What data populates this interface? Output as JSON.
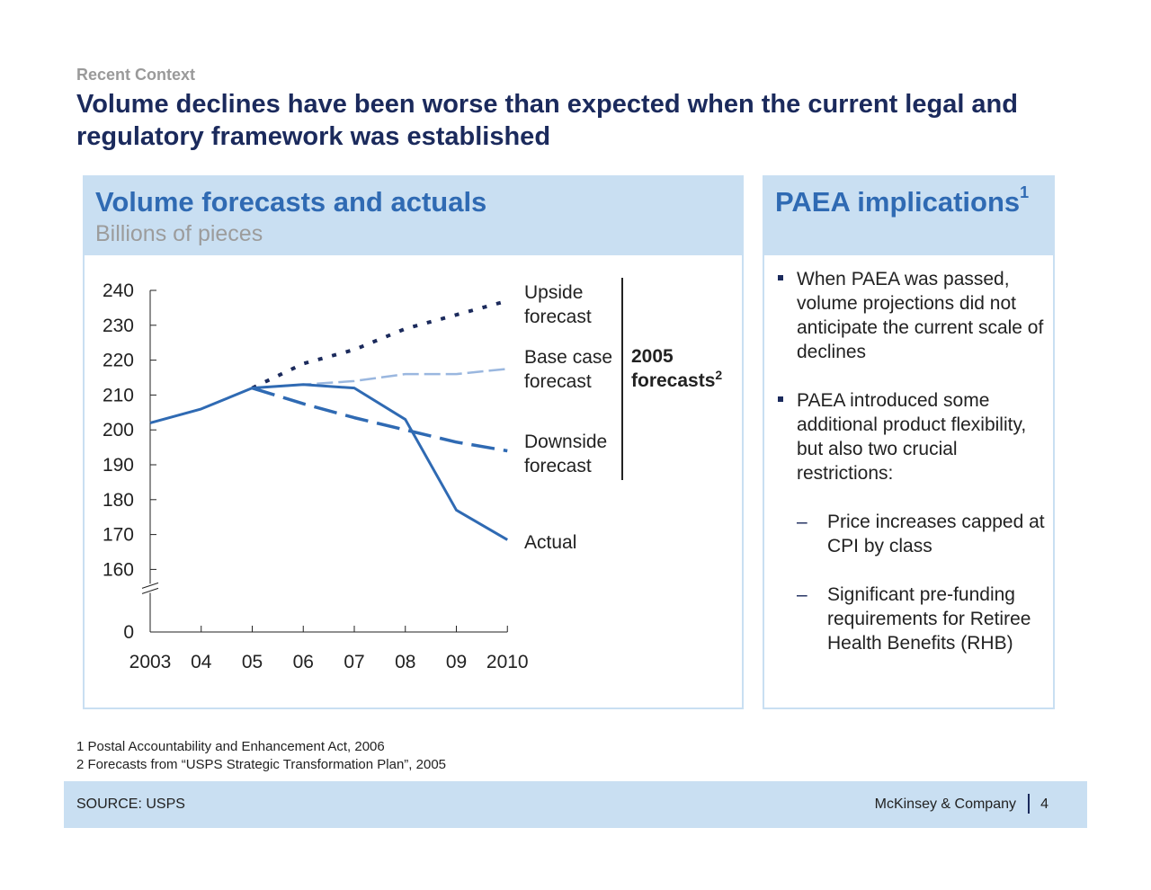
{
  "header": {
    "kicker": "Recent Context",
    "title": "Volume declines have been worse than expected when the current legal and regulatory framework was established"
  },
  "left_panel": {
    "title": "Volume forecasts and actuals",
    "subtitle": "Billions of pieces"
  },
  "right_panel": {
    "title": "PAEA implications",
    "title_sup": "1",
    "bullets": [
      "When PAEA was passed, volume projections did not anticipate the current scale of declines",
      "PAEA introduced some additional product flexibility, but also two crucial restrictions:"
    ],
    "sub_bullets": [
      "Price increases capped at CPI by class",
      "Significant pre-funding requirements for Retiree Health Benefits (RHB)"
    ],
    "dash": "–"
  },
  "chart_data": {
    "type": "line",
    "x": [
      2003,
      2004,
      2005,
      2006,
      2007,
      2008,
      2009,
      2010
    ],
    "x_tick_labels": [
      "2003",
      "04",
      "05",
      "06",
      "07",
      "08",
      "09",
      "2010"
    ],
    "y_tick_labels": [
      "240",
      "230",
      "220",
      "210",
      "200",
      "190",
      "180",
      "170",
      "160",
      "0"
    ],
    "y_ticks": [
      240,
      230,
      220,
      210,
      200,
      190,
      180,
      170,
      160,
      0
    ],
    "ylim_visible": [
      160,
      240
    ],
    "axis_break": true,
    "series": [
      {
        "name": "Upside forecast",
        "style": "dotted",
        "color": "#1b2a5c",
        "x": [
          2005,
          2006,
          2007,
          2008,
          2009,
          2010
        ],
        "values": [
          212,
          219,
          223,
          229,
          233,
          237
        ]
      },
      {
        "name": "Base case forecast",
        "style": "dashed-light",
        "color": "#9ab7df",
        "x": [
          2005,
          2006,
          2007,
          2008,
          2009,
          2010
        ],
        "values": [
          212,
          213,
          214,
          216,
          216,
          217.5
        ]
      },
      {
        "name": "Downside forecast",
        "style": "dashed",
        "color": "#2f6ab3",
        "x": [
          2005,
          2006,
          2007,
          2008,
          2009,
          2010
        ],
        "values": [
          212,
          207.5,
          203.5,
          200,
          196.5,
          194
        ]
      },
      {
        "name": "Actual",
        "style": "solid",
        "color": "#2f6ab3",
        "x": [
          2003,
          2004,
          2005,
          2006,
          2007,
          2008,
          2009,
          2010
        ],
        "values": [
          202,
          206,
          212,
          213,
          212,
          203,
          177,
          168.5
        ]
      }
    ],
    "series_labels": [
      [
        "Upside",
        "forecast"
      ],
      [
        "Base case",
        "forecast"
      ],
      [
        "Downside",
        "forecast"
      ],
      [
        "Actual"
      ]
    ],
    "bracket_label": [
      "2005",
      "forecasts"
    ],
    "bracket_sup": "2"
  },
  "footnotes": [
    "1 Postal Accountability and Enhancement Act, 2006",
    "2 Forecasts from “USPS Strategic Transformation Plan”, 2005"
  ],
  "footer": {
    "source": "SOURCE: USPS",
    "brand": "McKinsey & Company",
    "page": "4"
  }
}
